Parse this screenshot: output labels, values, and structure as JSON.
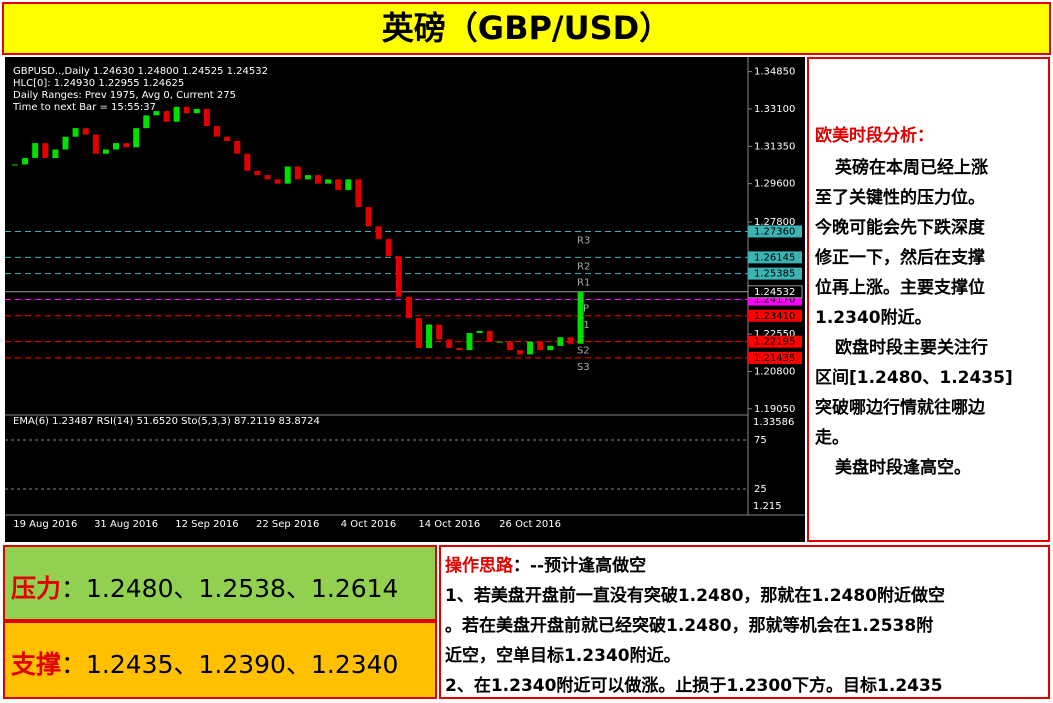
{
  "header": {
    "title": "英磅（GBP/USD）"
  },
  "chart": {
    "type": "candlestick",
    "info_lines": [
      "GBPUSD..,Daily  1.24630 1.24800 1.24525 1.24532",
      "HLC[0]: 1.24930 1.22955 1.24625",
      "Daily Ranges:  Prev 1975,  Avg 0,  Current 275",
      "Time to next Bar = 15:55:37"
    ],
    "categories": [
      null,
      null,
      null,
      "19 Aug 2016",
      null,
      null,
      null,
      null,
      null,
      null,
      null,
      "31 Aug 2016",
      null,
      null,
      null,
      null,
      null,
      null,
      null,
      "12 Sep 2016",
      null,
      null,
      null,
      null,
      null,
      null,
      null,
      "22 Sep 2016",
      null,
      null,
      null,
      null,
      null,
      null,
      null,
      "4 Oct 2016",
      null,
      null,
      null,
      null,
      null,
      null,
      null,
      "14 Oct 2016",
      null,
      null,
      null,
      null,
      null,
      null,
      null,
      "26 Oct 2016",
      null,
      null,
      null,
      null,
      null
    ],
    "values": [
      1.305,
      1.308,
      1.315,
      1.308,
      1.312,
      1.318,
      1.322,
      1.319,
      1.31,
      1.312,
      1.315,
      1.313,
      1.322,
      1.328,
      1.33,
      1.325,
      1.332,
      1.329,
      1.331,
      1.323,
      1.318,
      1.316,
      1.31,
      1.302,
      1.3,
      1.298,
      1.296,
      1.304,
      1.298,
      1.3,
      1.296,
      1.298,
      1.293,
      1.298,
      1.285,
      1.276,
      1.27,
      1.262,
      1.243,
      1.233,
      1.219,
      1.23,
      1.223,
      1.219,
      1.218,
      1.226,
      1.227,
      1.222,
      1.222,
      1.218,
      1.216,
      1.222,
      1.218,
      1.22,
      1.224,
      1.221,
      1.2453
    ],
    "ylim": [
      1.189,
      1.353
    ],
    "yticks": [
      {
        "value": 1.3485,
        "label": "1.34850"
      },
      {
        "value": 1.331,
        "label": "1.33100"
      },
      {
        "value": 1.3135,
        "label": "1.31350"
      },
      {
        "value": 1.296,
        "label": "1.29600"
      },
      {
        "value": 1.278,
        "label": "1.27800"
      },
      {
        "value": 1.2255,
        "label": "1.22550"
      },
      {
        "value": 1.208,
        "label": "1.20800"
      },
      {
        "value": 1.1905,
        "label": "1.19050"
      }
    ],
    "current": {
      "value": 1.24532,
      "label": "1.24532"
    },
    "levels": [
      {
        "name": "R3",
        "value": 1.2736,
        "label": "1.27360",
        "color": "#3cb4b4"
      },
      {
        "name": "R2",
        "value": 1.26145,
        "label": "1.26145",
        "color": "#3cb4b4"
      },
      {
        "name": "R1",
        "value": 1.25385,
        "label": "1.25385",
        "color": "#3cb4b4"
      },
      {
        "name": "PP",
        "value": 1.2417,
        "label": "1.24170",
        "color": "#ff00ff"
      },
      {
        "name": "S1",
        "value": 1.2341,
        "label": "1.23410",
        "color": "#ff0000"
      },
      {
        "name": "S2",
        "value": 1.22195,
        "label": "1.22195",
        "color": "#ff0000"
      },
      {
        "name": "S3",
        "value": 1.21435,
        "label": "1.21435",
        "color": "#ff0000"
      }
    ],
    "indicator": {
      "label": "EMA(6) 1.23487  RSI(14) 51.6520  Sto(5,3,3) 87.2119 83.8724",
      "ylim": [
        0,
        100
      ],
      "levels": [
        75,
        25
      ],
      "scale_top": "1.33586",
      "scale_bottom": "1.215"
    }
  },
  "analysis": {
    "heading": "欧美时段分析：",
    "lines": [
      "英磅在本周已经上涨",
      "至了关键性的压力位。",
      "今晚可能会先下跌深度",
      "修正一下，然后在支撑",
      "位再上涨。主要支撑位",
      "1.2340附近。",
      "欧盘时段主要关注行",
      "区间[1.2480、1.2435]",
      "突破哪边行情就往哪边",
      "走。",
      "美盘时段逢高空。"
    ]
  },
  "pressure": {
    "label": "压力",
    "text": "：1.2480、1.2538、1.2614"
  },
  "support": {
    "label": "支撑",
    "text": "：1.2435、1.2390、1.2340"
  },
  "plan": {
    "heading": "操作思路",
    "subtitle": "：--预计逢高做空",
    "lines": [
      "1、若美盘开盘前一直没有突破1.2480，那就在1.2480附近做空",
      "。若在美盘开盘前就已经突破1.2480，那就等机会在1.2538附",
      "近空，空单目标1.2340附近。",
      "2、在1.2340附近可以做涨。止损于1.2300下方。目标1.2435"
    ]
  }
}
